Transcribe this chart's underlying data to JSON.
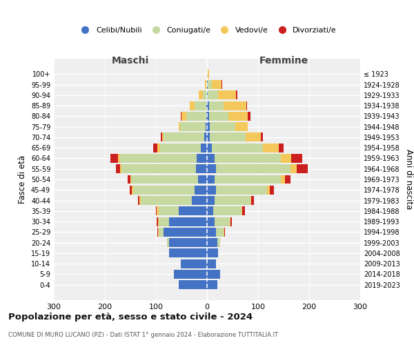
{
  "age_groups": [
    "0-4",
    "5-9",
    "10-14",
    "15-19",
    "20-24",
    "25-29",
    "30-34",
    "35-39",
    "40-44",
    "45-49",
    "50-54",
    "55-59",
    "60-64",
    "65-69",
    "70-74",
    "75-79",
    "80-84",
    "85-89",
    "90-94",
    "95-99",
    "100+"
  ],
  "birth_years": [
    "2019-2023",
    "2014-2018",
    "2009-2013",
    "2004-2008",
    "1999-2003",
    "1994-1998",
    "1989-1993",
    "1984-1988",
    "1979-1983",
    "1974-1978",
    "1969-1973",
    "1964-1968",
    "1959-1963",
    "1954-1958",
    "1949-1953",
    "1944-1948",
    "1939-1943",
    "1934-1938",
    "1929-1933",
    "1924-1928",
    "≤ 1923"
  ],
  "males": {
    "celibi": [
      55,
      65,
      52,
      75,
      75,
      85,
      75,
      55,
      30,
      25,
      18,
      22,
      20,
      12,
      5,
      3,
      2,
      2,
      0,
      0,
      0
    ],
    "coniugati": [
      0,
      0,
      0,
      0,
      3,
      10,
      20,
      40,
      100,
      120,
      130,
      145,
      150,
      80,
      80,
      50,
      38,
      22,
      8,
      2,
      0
    ],
    "vedovi": [
      0,
      0,
      0,
      0,
      0,
      1,
      1,
      3,
      2,
      2,
      2,
      3,
      4,
      5,
      3,
      3,
      10,
      10,
      8,
      2,
      0
    ],
    "divorziati": [
      0,
      0,
      0,
      0,
      0,
      1,
      2,
      2,
      3,
      5,
      5,
      8,
      15,
      8,
      2,
      0,
      2,
      0,
      0,
      0,
      0
    ]
  },
  "females": {
    "nubili": [
      20,
      25,
      18,
      22,
      20,
      18,
      15,
      12,
      15,
      18,
      15,
      18,
      15,
      10,
      5,
      5,
      4,
      4,
      2,
      2,
      0
    ],
    "coniugate": [
      0,
      0,
      0,
      0,
      5,
      15,
      30,
      55,
      70,
      100,
      130,
      145,
      130,
      100,
      70,
      50,
      38,
      28,
      20,
      8,
      2
    ],
    "vedove": [
      0,
      0,
      0,
      0,
      0,
      1,
      1,
      2,
      2,
      5,
      8,
      12,
      20,
      30,
      30,
      25,
      38,
      45,
      35,
      18,
      2
    ],
    "divorziate": [
      0,
      0,
      0,
      0,
      0,
      1,
      2,
      5,
      5,
      8,
      10,
      22,
      22,
      10,
      5,
      0,
      5,
      2,
      2,
      2,
      0
    ]
  },
  "colors": {
    "celibi_nubili": "#4472c4",
    "coniugati": "#c5d9a0",
    "vedovi": "#f5c85c",
    "divorziati": "#cc2020"
  },
  "title": "Popolazione per età, sesso e stato civile - 2024",
  "subtitle": "COMUNE DI MURO LUCANO (PZ) - Dati ISTAT 1° gennaio 2024 - Elaborazione TUTTITALIA.IT",
  "xlabel_left": "Maschi",
  "xlabel_right": "Femmine",
  "ylabel_left": "Fasce di età",
  "ylabel_right": "Anni di nascita",
  "xlim": 300,
  "bg_color": "#ffffff",
  "plot_bg": "#efefef"
}
